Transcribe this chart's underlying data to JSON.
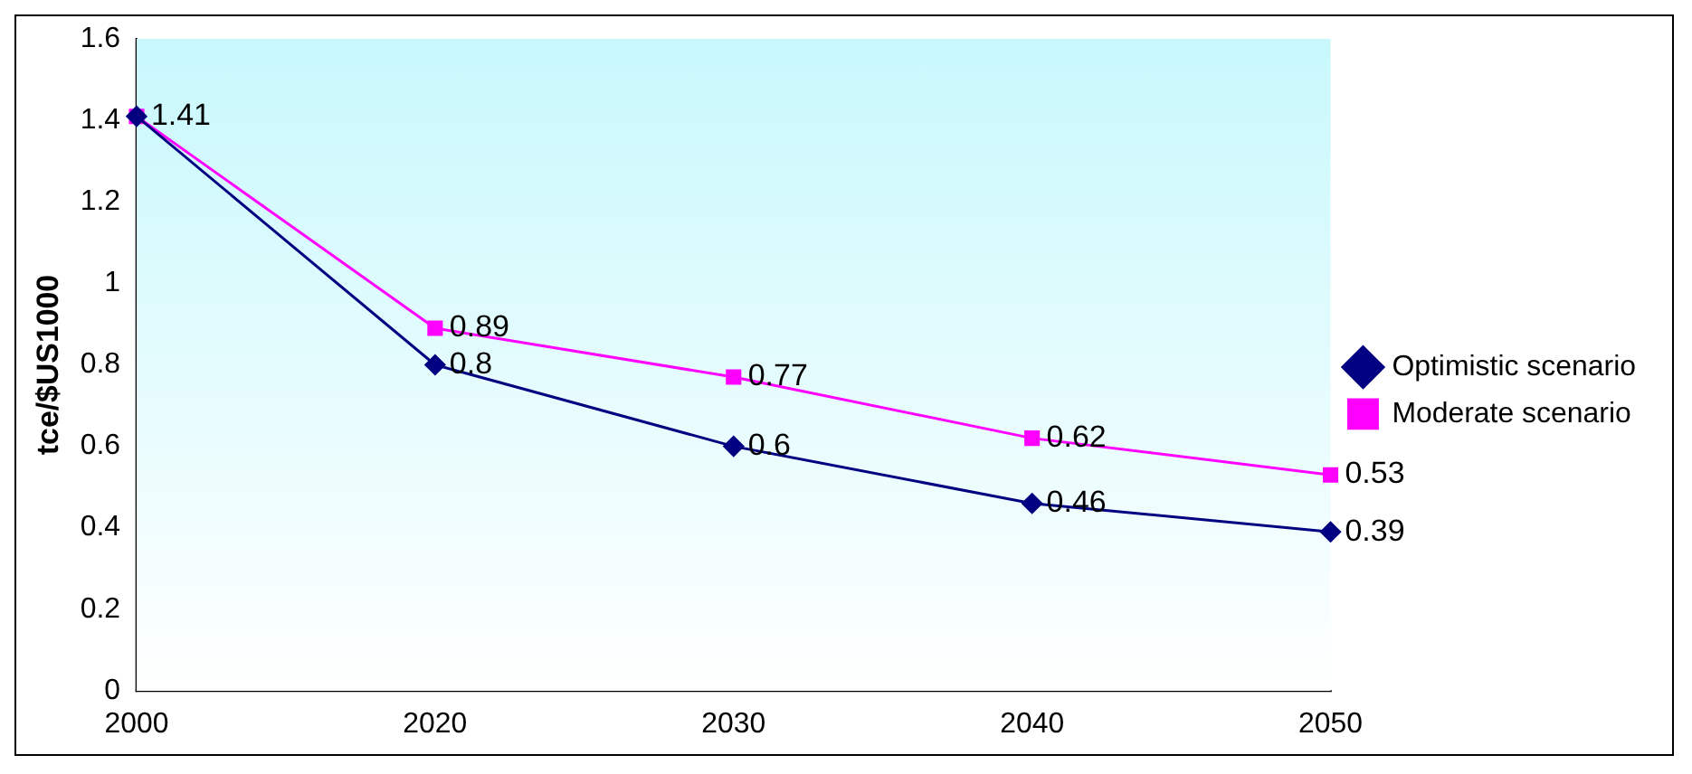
{
  "chart_data": {
    "type": "line",
    "ylabel": "tce/$US1000",
    "categories": [
      "2000",
      "2020",
      "2030",
      "2040",
      "2050"
    ],
    "series": [
      {
        "name": "Optimistic scenario",
        "color": "#000080",
        "marker": "diamond",
        "values": [
          1.41,
          0.8,
          0.6,
          0.46,
          0.39
        ],
        "value_labels": [
          null,
          "0.8",
          "0.6",
          "0.46",
          "0.39"
        ]
      },
      {
        "name": "Moderate scenario",
        "color": "#ff00ff",
        "marker": "square",
        "values": [
          1.41,
          0.89,
          0.77,
          0.62,
          0.53
        ],
        "value_labels": [
          "1.41",
          "0.89",
          "0.77",
          "0.62",
          "0.53"
        ]
      }
    ],
    "ylim": [
      0,
      1.6
    ],
    "yticks": [
      0,
      0.2,
      0.4,
      0.6,
      0.8,
      1,
      1.2,
      1.4,
      1.6
    ],
    "grid": false,
    "legend": "right",
    "line_style": "solid"
  }
}
